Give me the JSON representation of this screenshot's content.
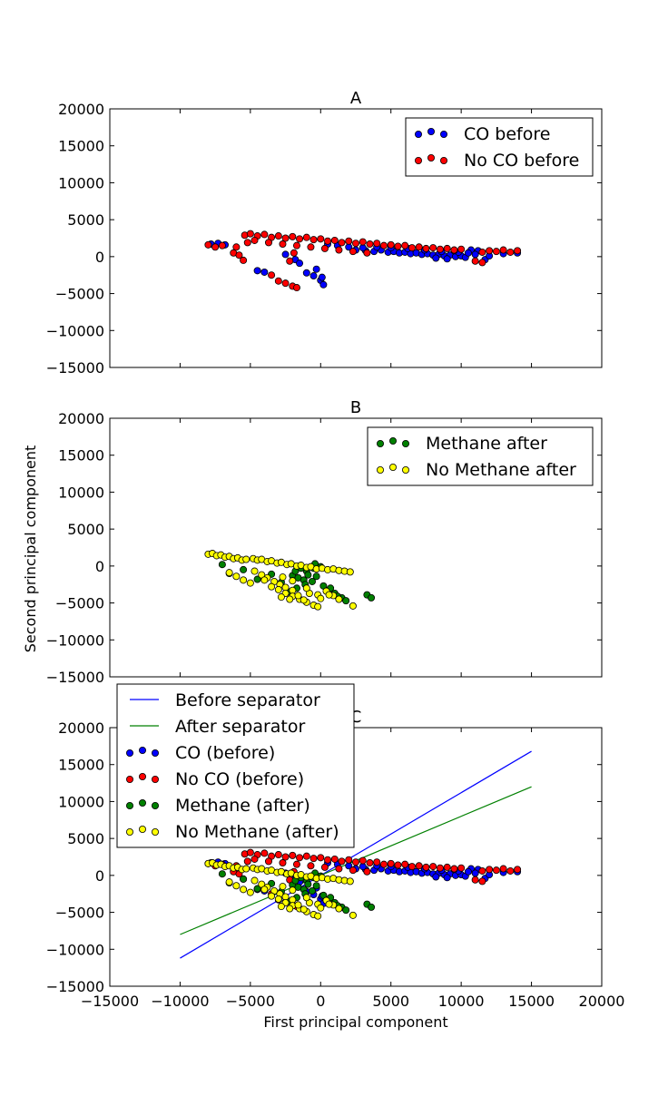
{
  "figure": {
    "ylabel": "Second principal component",
    "xlabel": "First principal component"
  },
  "chart_data": [
    {
      "type": "scatter",
      "title": "A",
      "xlim": [
        -15000,
        20000
      ],
      "ylim": [
        -15000,
        20000
      ],
      "x_ticks": [
        "-15000",
        "-10000",
        "-5000",
        "0",
        "5000",
        "10000",
        "15000",
        "20000"
      ],
      "y_ticks": [
        "20000",
        "15000",
        "10000",
        "5000",
        "0",
        "-5000",
        "-10000",
        "-15000"
      ],
      "x_tick_labels_visible": false,
      "legend_position": "upper-right",
      "colors": {
        "CO before": "#0000ff",
        "No CO before": "#ff0000"
      },
      "series": [
        {
          "name": "CO before",
          "color": "#0000ff",
          "points": [
            [
              -7800,
              1700
            ],
            [
              -7300,
              1800
            ],
            [
              -6800,
              1600
            ],
            [
              -2500,
              300
            ],
            [
              -1800,
              -400
            ],
            [
              -1500,
              -900
            ],
            [
              -4500,
              -1900
            ],
            [
              -4000,
              -2100
            ],
            [
              -1000,
              -2200
            ],
            [
              -500,
              -2600
            ],
            [
              0,
              -3200
            ],
            [
              200,
              -3800
            ],
            [
              -300,
              -1700
            ],
            [
              100,
              -2800
            ],
            [
              2500,
              900
            ],
            [
              3200,
              800
            ],
            [
              3800,
              700
            ],
            [
              4300,
              900
            ],
            [
              4800,
              600
            ],
            [
              5200,
              700
            ],
            [
              5600,
              500
            ],
            [
              6000,
              600
            ],
            [
              6400,
              400
            ],
            [
              6800,
              500
            ],
            [
              7200,
              300
            ],
            [
              7600,
              400
            ],
            [
              8000,
              200
            ],
            [
              8400,
              300
            ],
            [
              8800,
              100
            ],
            [
              9200,
              200
            ],
            [
              9600,
              0
            ],
            [
              10000,
              100
            ],
            [
              10300,
              -100
            ],
            [
              10700,
              900
            ],
            [
              11200,
              800
            ],
            [
              11700,
              -400
            ],
            [
              6200,
              1100
            ],
            [
              7400,
              900
            ],
            [
              8600,
              700
            ],
            [
              9800,
              600
            ],
            [
              5000,
              1200
            ],
            [
              4000,
              1300
            ],
            [
              3000,
              1200
            ],
            [
              2000,
              1300
            ],
            [
              1200,
              1500
            ],
            [
              500,
              1700
            ],
            [
              8200,
              -200
            ],
            [
              9000,
              -300
            ],
            [
              9500,
              800
            ],
            [
              10500,
              500
            ],
            [
              11000,
              300
            ],
            [
              12000,
              100
            ],
            [
              13000,
              400
            ],
            [
              14000,
              500
            ]
          ]
        },
        {
          "name": "No CO before",
          "color": "#ff0000",
          "points": [
            [
              -8000,
              1600
            ],
            [
              -7500,
              1300
            ],
            [
              -7000,
              1500
            ],
            [
              -6000,
              1300
            ],
            [
              -6200,
              500
            ],
            [
              -5800,
              200
            ],
            [
              -5200,
              1900
            ],
            [
              -5400,
              2900
            ],
            [
              -5000,
              3100
            ],
            [
              -4500,
              2800
            ],
            [
              -4000,
              3000
            ],
            [
              -3500,
              2600
            ],
            [
              -3000,
              2800
            ],
            [
              -2500,
              2500
            ],
            [
              -2000,
              2700
            ],
            [
              -1500,
              2400
            ],
            [
              -1000,
              2600
            ],
            [
              -500,
              2300
            ],
            [
              0,
              2400
            ],
            [
              500,
              2100
            ],
            [
              1000,
              2200
            ],
            [
              1500,
              1900
            ],
            [
              2000,
              2100
            ],
            [
              2500,
              1800
            ],
            [
              3000,
              2000
            ],
            [
              3500,
              1700
            ],
            [
              4000,
              1800
            ],
            [
              4500,
              1500
            ],
            [
              5000,
              1600
            ],
            [
              5500,
              1400
            ],
            [
              6000,
              1500
            ],
            [
              6500,
              1200
            ],
            [
              7000,
              1300
            ],
            [
              7500,
              1100
            ],
            [
              8000,
              1200
            ],
            [
              8500,
              1000
            ],
            [
              9000,
              1100
            ],
            [
              9500,
              900
            ],
            [
              10000,
              1000
            ],
            [
              -4700,
              2200
            ],
            [
              -3700,
              1900
            ],
            [
              -2700,
              1700
            ],
            [
              -1700,
              1500
            ],
            [
              -700,
              1300
            ],
            [
              300,
              1100
            ],
            [
              1300,
              900
            ],
            [
              2300,
              700
            ],
            [
              3300,
              500
            ],
            [
              -2200,
              -600
            ],
            [
              -1900,
              500
            ],
            [
              -5500,
              -500
            ],
            [
              -3000,
              -3300
            ],
            [
              -2500,
              -3600
            ],
            [
              -2000,
              -4000
            ],
            [
              -1700,
              -4200
            ],
            [
              -3500,
              -2500
            ],
            [
              11500,
              600
            ],
            [
              12000,
              800
            ],
            [
              12500,
              700
            ],
            [
              13000,
              900
            ],
            [
              13500,
              600
            ],
            [
              14000,
              800
            ],
            [
              11000,
              -600
            ],
            [
              11500,
              -800
            ]
          ]
        }
      ]
    },
    {
      "type": "scatter",
      "title": "B",
      "xlim": [
        -15000,
        20000
      ],
      "ylim": [
        -15000,
        20000
      ],
      "x_ticks": [
        "-15000",
        "-10000",
        "-5000",
        "0",
        "5000",
        "10000",
        "15000",
        "20000"
      ],
      "y_ticks": [
        "20000",
        "15000",
        "10000",
        "5000",
        "0",
        "-5000",
        "-10000",
        "-15000"
      ],
      "x_tick_labels_visible": false,
      "legend_position": "upper-right",
      "colors": {
        "Methane after": "#008000",
        "No Methane after": "#ffff00"
      },
      "series": [
        {
          "name": "Methane after",
          "color": "#008000",
          "points": [
            [
              -7000,
              200
            ],
            [
              -6500,
              -1000
            ],
            [
              -5500,
              -500
            ],
            [
              -4500,
              -1800
            ],
            [
              -3500,
              -1100
            ],
            [
              -2800,
              -2200
            ],
            [
              -2000,
              -1300
            ],
            [
              -1600,
              -1600
            ],
            [
              -1200,
              -1900
            ],
            [
              -1800,
              -700
            ],
            [
              -1000,
              -700
            ],
            [
              -500,
              -300
            ],
            [
              0,
              -100
            ],
            [
              -400,
              300
            ],
            [
              -1400,
              -300
            ],
            [
              -900,
              -1200
            ],
            [
              -300,
              -1400
            ],
            [
              500,
              -3300
            ],
            [
              1000,
              -3700
            ],
            [
              1500,
              -4300
            ],
            [
              1800,
              -4700
            ],
            [
              1200,
              -4100
            ],
            [
              3300,
              -3900
            ],
            [
              3600,
              -4300
            ],
            [
              -2300,
              -3500
            ],
            [
              -1700,
              -3000
            ],
            [
              -1100,
              -2500
            ],
            [
              -600,
              -2100
            ],
            [
              200,
              -2700
            ],
            [
              700,
              -3000
            ]
          ]
        },
        {
          "name": "No Methane after",
          "color": "#ffff00",
          "points": [
            [
              -8000,
              1600
            ],
            [
              -7700,
              1700
            ],
            [
              -7400,
              1400
            ],
            [
              -7100,
              1500
            ],
            [
              -6800,
              1200
            ],
            [
              -6500,
              1300
            ],
            [
              -6200,
              1000
            ],
            [
              -5900,
              1100
            ],
            [
              -5600,
              800
            ],
            [
              -5300,
              900
            ],
            [
              -4800,
              1000
            ],
            [
              -4500,
              800
            ],
            [
              -4200,
              900
            ],
            [
              -3800,
              600
            ],
            [
              -3500,
              700
            ],
            [
              -3100,
              400
            ],
            [
              -2800,
              500
            ],
            [
              -2400,
              200
            ],
            [
              -2100,
              300
            ],
            [
              -1700,
              0
            ],
            [
              -1400,
              100
            ],
            [
              -1000,
              -200
            ],
            [
              -700,
              -100
            ],
            [
              -300,
              -400
            ],
            [
              100,
              -300
            ],
            [
              500,
              -500
            ],
            [
              900,
              -400
            ],
            [
              1300,
              -600
            ],
            [
              1700,
              -700
            ],
            [
              2100,
              -800
            ],
            [
              -6500,
              -900
            ],
            [
              -6000,
              -1400
            ],
            [
              -5500,
              -1900
            ],
            [
              -5000,
              -2300
            ],
            [
              -4700,
              -700
            ],
            [
              -4200,
              -1200
            ],
            [
              -3800,
              -1600
            ],
            [
              -3300,
              -2100
            ],
            [
              -2900,
              -2500
            ],
            [
              -2500,
              -2900
            ],
            [
              -2000,
              -3300
            ],
            [
              -3500,
              -2800
            ],
            [
              -3000,
              -3200
            ],
            [
              -2500,
              -3700
            ],
            [
              -2000,
              -4100
            ],
            [
              -1500,
              -4500
            ],
            [
              -1000,
              -4900
            ],
            [
              -500,
              -5300
            ],
            [
              -200,
              -5500
            ],
            [
              -2800,
              -4200
            ],
            [
              -2200,
              -4500
            ],
            [
              -1600,
              -4000
            ],
            [
              -800,
              -3700
            ],
            [
              -200,
              -3900
            ],
            [
              400,
              -3400
            ],
            [
              900,
              -4000
            ],
            [
              1300,
              -4500
            ],
            [
              2300,
              -5400
            ],
            [
              -1200,
              -4600
            ],
            [
              -2700,
              -1500
            ],
            [
              -2000,
              -2000
            ],
            [
              -4000,
              -1900
            ],
            [
              -1000,
              -3000
            ],
            [
              0,
              -4400
            ],
            [
              600,
              -3900
            ]
          ]
        }
      ]
    },
    {
      "type": "scatter",
      "title": "C",
      "xlim": [
        -15000,
        20000
      ],
      "ylim": [
        -15000,
        20000
      ],
      "x_ticks": [
        "-15000",
        "-10000",
        "-5000",
        "0",
        "5000",
        "10000",
        "15000",
        "20000"
      ],
      "y_ticks": [
        "20000",
        "15000",
        "10000",
        "5000",
        "0",
        "-5000",
        "-10000",
        "-15000"
      ],
      "x_tick_labels_visible": true,
      "legend_position": "upper-left",
      "colors": {
        "Before separator": "#0000ff",
        "After separator": "#008000",
        "CO (before)": "#0000ff",
        "No CO (before)": "#ff0000",
        "Methane (after)": "#008000",
        "No Methane (after)": "#ffff00"
      },
      "lines": [
        {
          "name": "Before separator",
          "color": "#0000ff",
          "points": [
            [
              -10000,
              -11200
            ],
            [
              15000,
              16800
            ]
          ]
        },
        {
          "name": "After separator",
          "color": "#008000",
          "points": [
            [
              -10000,
              -8000
            ],
            [
              15000,
              12000
            ]
          ]
        }
      ],
      "series_from": [
        "A.CO before",
        "A.No CO before",
        "B.Methane after",
        "B.No Methane after"
      ],
      "series_names": [
        "CO (before)",
        "No CO (before)",
        "Methane (after)",
        "No Methane (after)"
      ]
    }
  ]
}
